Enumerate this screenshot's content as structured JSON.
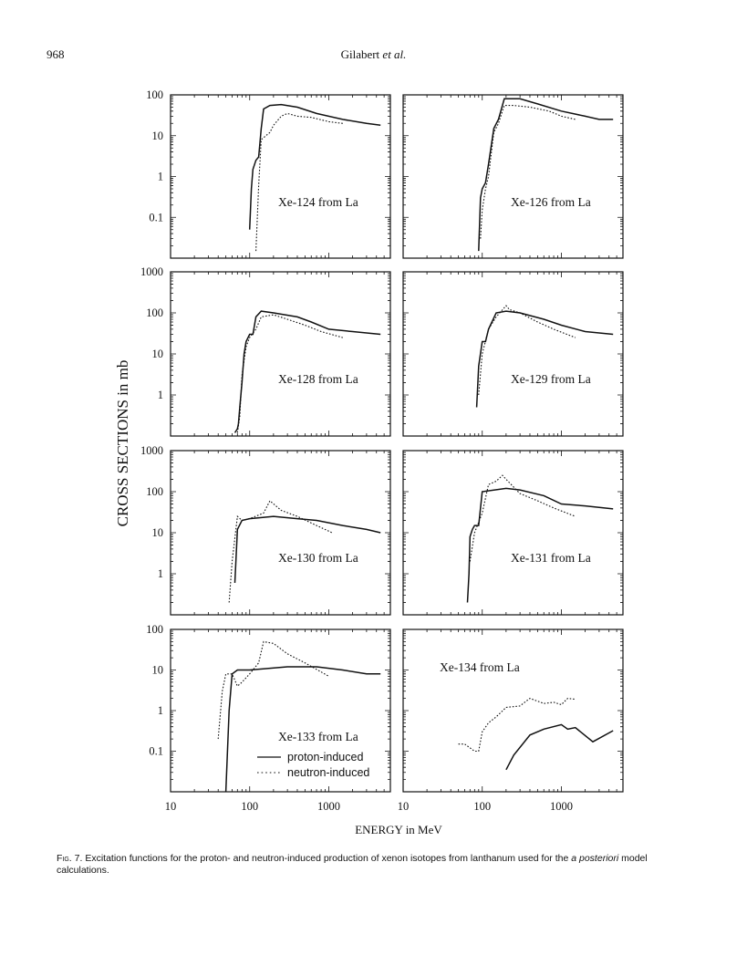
{
  "header": {
    "page_number": "968",
    "authors": "Gilabert",
    "etal": "et al."
  },
  "figure": {
    "ylabel": "CROSS SECTIONS  in mb",
    "xlabel": "ENERGY in MeV",
    "x_ticks": [
      "10",
      "100",
      "1000"
    ],
    "legend": {
      "proton": "proton-induced",
      "neutron": "neutron-induced"
    }
  },
  "chart_data": [
    {
      "type": "line",
      "panel": 1,
      "title": "Xe-124 from La",
      "xscale": "log",
      "yscale": "log",
      "xlim": [
        10,
        6000
      ],
      "ylim": [
        0.01,
        100
      ],
      "y_ticks": [
        "100",
        "10",
        "1",
        "0.1"
      ],
      "series": [
        {
          "name": "proton-induced",
          "x": [
            100,
            105,
            110,
            120,
            130,
            140,
            150,
            180,
            250,
            400,
            700,
            1500,
            3000,
            4500
          ],
          "y": [
            0.05,
            0.5,
            1.5,
            2.5,
            3,
            15,
            45,
            55,
            58,
            50,
            35,
            25,
            20,
            18
          ]
        },
        {
          "name": "neutron-induced",
          "x": [
            120,
            130,
            140,
            160,
            180,
            200,
            250,
            300,
            400,
            600,
            1000,
            1500
          ],
          "y": [
            0.015,
            0.6,
            8,
            10,
            12,
            18,
            30,
            35,
            30,
            28,
            22,
            20
          ]
        }
      ]
    },
    {
      "type": "line",
      "panel": 2,
      "title": "Xe-126 from La",
      "xscale": "log",
      "yscale": "log",
      "xlim": [
        10,
        6000
      ],
      "ylim": [
        0.01,
        100
      ],
      "y_ticks": [],
      "series": [
        {
          "name": "proton-induced",
          "x": [
            90,
            95,
            100,
            110,
            120,
            140,
            160,
            190,
            300,
            500,
            1000,
            2000,
            3000,
            4500
          ],
          "y": [
            0.015,
            0.3,
            0.5,
            0.7,
            2,
            15,
            25,
            80,
            80,
            60,
            40,
            30,
            25,
            25
          ]
        },
        {
          "name": "neutron-induced",
          "x": [
            95,
            100,
            110,
            120,
            140,
            160,
            190,
            250,
            400,
            700,
            1000,
            1500
          ],
          "y": [
            0.03,
            0.15,
            0.5,
            1,
            12,
            20,
            55,
            55,
            50,
            40,
            30,
            25
          ]
        }
      ]
    },
    {
      "type": "line",
      "panel": 3,
      "title": "Xe-128 from La",
      "xscale": "log",
      "yscale": "log",
      "xlim": [
        10,
        6000
      ],
      "ylim": [
        0.1,
        1000
      ],
      "y_ticks": [
        "1000",
        "100",
        "10",
        "1"
      ],
      "series": [
        {
          "name": "proton-induced",
          "x": [
            65,
            70,
            72,
            75,
            80,
            85,
            90,
            100,
            110,
            120,
            140,
            200,
            400,
            600,
            1000,
            2000,
            4500
          ],
          "y": [
            0.12,
            0.15,
            0.2,
            0.5,
            2,
            10,
            20,
            30,
            30,
            80,
            110,
            100,
            80,
            60,
            40,
            35,
            30
          ]
        },
        {
          "name": "neutron-induced",
          "x": [
            70,
            75,
            80,
            90,
            100,
            120,
            140,
            200,
            300,
            500,
            800,
            1500
          ],
          "y": [
            0.12,
            0.3,
            3,
            15,
            25,
            40,
            80,
            90,
            70,
            50,
            35,
            25
          ]
        }
      ]
    },
    {
      "type": "line",
      "panel": 4,
      "title": "Xe-129 from La",
      "xscale": "log",
      "yscale": "log",
      "xlim": [
        10,
        6000
      ],
      "ylim": [
        0.1,
        1000
      ],
      "y_ticks": [],
      "series": [
        {
          "name": "proton-induced",
          "x": [
            85,
            90,
            100,
            110,
            120,
            150,
            200,
            300,
            600,
            1000,
            2000,
            4500
          ],
          "y": [
            0.5,
            5,
            20,
            20,
            40,
            100,
            110,
            100,
            70,
            50,
            35,
            30
          ]
        },
        {
          "name": "neutron-induced",
          "x": [
            90,
            100,
            120,
            150,
            200,
            220,
            300,
            500,
            800,
            1500
          ],
          "y": [
            1,
            10,
            40,
            80,
            150,
            120,
            100,
            60,
            40,
            25
          ]
        }
      ]
    },
    {
      "type": "line",
      "panel": 5,
      "title": "Xe-130 from La",
      "xscale": "log",
      "yscale": "log",
      "xlim": [
        10,
        6000
      ],
      "ylim": [
        0.1,
        1000
      ],
      "y_ticks": [
        "1000",
        "100",
        "10",
        "1"
      ],
      "series": [
        {
          "name": "proton-induced",
          "x": [
            65,
            70,
            80,
            100,
            200,
            400,
            700,
            1500,
            3000,
            4500
          ],
          "y": [
            0.6,
            12,
            20,
            22,
            25,
            22,
            20,
            15,
            12,
            10
          ]
        },
        {
          "name": "neutron-induced",
          "x": [
            55,
            60,
            70,
            80,
            100,
            150,
            180,
            250,
            400,
            700,
            1100
          ],
          "y": [
            0.2,
            2,
            25,
            20,
            22,
            30,
            60,
            35,
            25,
            15,
            10
          ]
        }
      ]
    },
    {
      "type": "line",
      "panel": 6,
      "title": "Xe-131 from La",
      "xscale": "log",
      "yscale": "log",
      "xlim": [
        10,
        6000
      ],
      "ylim": [
        0.1,
        1000
      ],
      "y_ticks": [],
      "series": [
        {
          "name": "proton-induced",
          "x": [
            65,
            68,
            70,
            75,
            80,
            90,
            100,
            200,
            300,
            600,
            1000,
            2000,
            4500
          ],
          "y": [
            0.2,
            1,
            8,
            12,
            15,
            15,
            100,
            120,
            110,
            80,
            50,
            45,
            38
          ]
        },
        {
          "name": "neutron-induced",
          "x": [
            70,
            80,
            100,
            120,
            150,
            180,
            200,
            300,
            500,
            800,
            1500
          ],
          "y": [
            2,
            10,
            30,
            150,
            180,
            250,
            200,
            90,
            60,
            40,
            25
          ]
        }
      ]
    },
    {
      "type": "line",
      "panel": 7,
      "title": "Xe-133 from La",
      "xscale": "log",
      "yscale": "log",
      "xlim": [
        10,
        6000
      ],
      "ylim": [
        0.01,
        100
      ],
      "y_ticks": [
        "100",
        "10",
        "1",
        "0.1"
      ],
      "series": [
        {
          "name": "proton-induced",
          "x": [
            50,
            55,
            60,
            70,
            100,
            300,
            700,
            1500,
            3000,
            4500
          ],
          "y": [
            0.01,
            1,
            8,
            10,
            10,
            12,
            12,
            10,
            8,
            8
          ]
        },
        {
          "name": "neutron-induced",
          "x": [
            40,
            45,
            50,
            60,
            70,
            80,
            100,
            130,
            150,
            200,
            300,
            500,
            1000
          ],
          "y": [
            0.2,
            3,
            8,
            8,
            4,
            5,
            8,
            15,
            50,
            45,
            25,
            15,
            7
          ]
        }
      ]
    },
    {
      "type": "line",
      "panel": 8,
      "title": "Xe-134 from La",
      "xscale": "log",
      "yscale": "log",
      "xlim": [
        10,
        6000
      ],
      "ylim": [
        0.01,
        100
      ],
      "y_ticks": [],
      "series": [
        {
          "name": "proton-induced",
          "x": [
            200,
            250,
            400,
            600,
            1000,
            1200,
            1500,
            2500,
            4500
          ],
          "y": [
            0.035,
            0.08,
            0.25,
            0.35,
            0.45,
            0.35,
            0.38,
            0.17,
            0.32
          ]
        },
        {
          "name": "neutron-induced",
          "x": [
            50,
            60,
            80,
            90,
            100,
            120,
            150,
            200,
            300,
            400,
            600,
            800,
            1000,
            1200,
            1500
          ],
          "y": [
            0.15,
            0.15,
            0.1,
            0.1,
            0.3,
            0.5,
            0.7,
            1.2,
            1.3,
            2,
            1.5,
            1.6,
            1.4,
            2,
            1.9
          ]
        }
      ]
    }
  ],
  "caption": {
    "label": "Fig. 7.",
    "text_before": "Excitation functions for the proton- and neutron-induced production of xenon isotopes from lanthanum used for the",
    "italic": "a posteriori",
    "text_after": "model calculations."
  }
}
